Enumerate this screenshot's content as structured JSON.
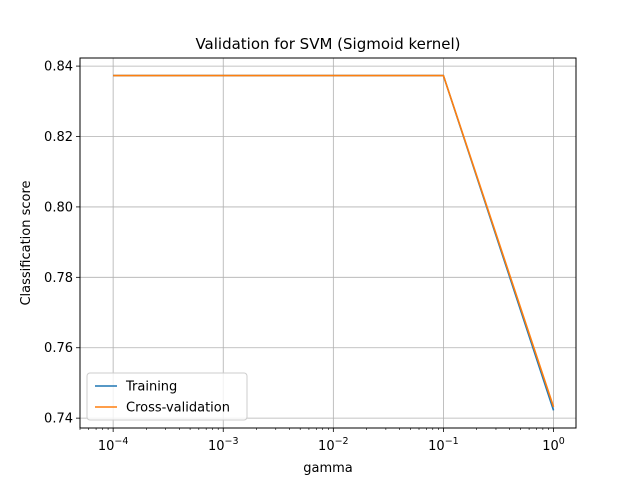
{
  "chart_data": {
    "type": "line",
    "title": "Validation for SVM (Sigmoid kernel)",
    "xlabel": "gamma",
    "ylabel": "Classification score",
    "xscale": "log",
    "x": [
      0.0001,
      0.001,
      0.01,
      0.1,
      1
    ],
    "xlim": [
      5e-05,
      1.6
    ],
    "ylim": [
      0.7372,
      0.8423
    ],
    "xticks": [
      {
        "value": 0.0001,
        "base": "10",
        "exp": "−4"
      },
      {
        "value": 0.001,
        "base": "10",
        "exp": "−3"
      },
      {
        "value": 0.01,
        "base": "10",
        "exp": "−2"
      },
      {
        "value": 0.1,
        "base": "10",
        "exp": "−1"
      },
      {
        "value": 1,
        "base": "10",
        "exp": "0"
      }
    ],
    "yticks": [
      {
        "value": 0.74,
        "label": "0.74"
      },
      {
        "value": 0.76,
        "label": "0.76"
      },
      {
        "value": 0.78,
        "label": "0.78"
      },
      {
        "value": 0.8,
        "label": "0.80"
      },
      {
        "value": 0.82,
        "label": "0.82"
      },
      {
        "value": 0.84,
        "label": "0.84"
      }
    ],
    "grid": true,
    "legend_position": "lower-left",
    "series": [
      {
        "name": "Training",
        "color": "#1f77b4",
        "values": [
          0.8373,
          0.8373,
          0.8373,
          0.8373,
          0.7422
        ]
      },
      {
        "name": "Cross-validation",
        "color": "#ff7f0e",
        "values": [
          0.8373,
          0.8373,
          0.8373,
          0.8373,
          0.7432
        ]
      }
    ]
  }
}
